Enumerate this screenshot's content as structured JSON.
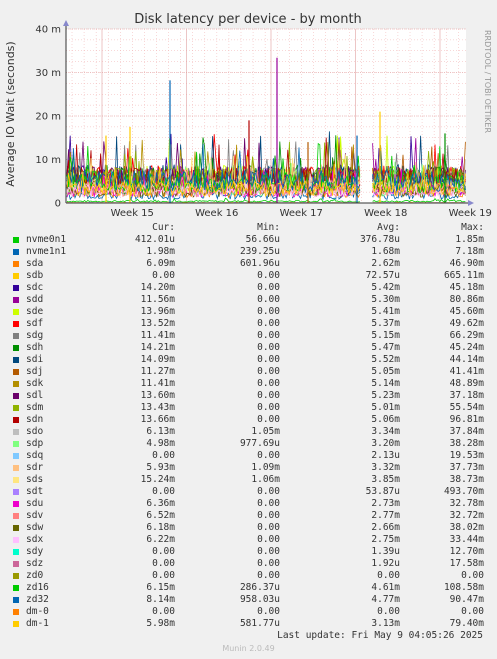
{
  "chart_data": {
    "type": "line",
    "title": "Disk latency per device - by month",
    "ylabel": "Average IO Wait (seconds)",
    "xlabel": "",
    "ylim": [
      0,
      0.04
    ],
    "y_ticks": [
      {
        "value": 0,
        "label": "0"
      },
      {
        "value": 0.01,
        "label": "10 m"
      },
      {
        "value": 0.02,
        "label": "20 m"
      },
      {
        "value": 0.03,
        "label": "30 m"
      },
      {
        "value": 0.04,
        "label": "40 m"
      }
    ],
    "x_ticks": [
      "Week 15",
      "Week 16",
      "Week 17",
      "Week 18",
      "Week 19"
    ],
    "grid": true,
    "legend_placement": "bottom",
    "side_label": "RRDTOOL / TOBI OETIKER"
  },
  "legend": {
    "headers": {
      "cur": "Cur:",
      "min": "Min:",
      "avg": "Avg:",
      "max": "Max:"
    },
    "rows": [
      {
        "name": "nvme0n1",
        "color": "#00cc00",
        "cur": "412.01u",
        "min": "56.66u",
        "avg": "376.78u",
        "max": "1.85m"
      },
      {
        "name": "nvme1n1",
        "color": "#0066b3",
        "cur": "1.98m",
        "min": "239.25u",
        "avg": "1.68m",
        "max": "7.18m"
      },
      {
        "name": "sda",
        "color": "#ff8000",
        "cur": "6.09m",
        "min": "601.96u",
        "avg": "2.62m",
        "max": "46.90m"
      },
      {
        "name": "sdb",
        "color": "#ffcc00",
        "cur": "0.00",
        "min": "0.00",
        "avg": "72.57u",
        "max": "665.11m"
      },
      {
        "name": "sdc",
        "color": "#330099",
        "cur": "14.20m",
        "min": "0.00",
        "avg": "5.42m",
        "max": "45.18m"
      },
      {
        "name": "sdd",
        "color": "#990099",
        "cur": "11.56m",
        "min": "0.00",
        "avg": "5.30m",
        "max": "80.86m"
      },
      {
        "name": "sde",
        "color": "#ccff00",
        "cur": "13.96m",
        "min": "0.00",
        "avg": "5.41m",
        "max": "45.60m"
      },
      {
        "name": "sdf",
        "color": "#ff0000",
        "cur": "13.52m",
        "min": "0.00",
        "avg": "5.37m",
        "max": "49.62m"
      },
      {
        "name": "sdg",
        "color": "#808080",
        "cur": "11.41m",
        "min": "0.00",
        "avg": "5.15m",
        "max": "66.29m"
      },
      {
        "name": "sdh",
        "color": "#008f00",
        "cur": "14.21m",
        "min": "0.00",
        "avg": "5.47m",
        "max": "45.24m"
      },
      {
        "name": "sdi",
        "color": "#00487d",
        "cur": "14.09m",
        "min": "0.00",
        "avg": "5.52m",
        "max": "44.14m"
      },
      {
        "name": "sdj",
        "color": "#b35a00",
        "cur": "11.27m",
        "min": "0.00",
        "avg": "5.05m",
        "max": "41.41m"
      },
      {
        "name": "sdk",
        "color": "#b38f00",
        "cur": "11.41m",
        "min": "0.00",
        "avg": "5.14m",
        "max": "48.89m"
      },
      {
        "name": "sdl",
        "color": "#6b006b",
        "cur": "13.60m",
        "min": "0.00",
        "avg": "5.23m",
        "max": "37.18m"
      },
      {
        "name": "sdm",
        "color": "#8fb300",
        "cur": "13.43m",
        "min": "0.00",
        "avg": "5.01m",
        "max": "55.54m"
      },
      {
        "name": "sdn",
        "color": "#b30000",
        "cur": "13.66m",
        "min": "0.00",
        "avg": "5.06m",
        "max": "96.81m"
      },
      {
        "name": "sdo",
        "color": "#bebebe",
        "cur": "6.13m",
        "min": "1.05m",
        "avg": "3.34m",
        "max": "37.84m"
      },
      {
        "name": "sdp",
        "color": "#80ff80",
        "cur": "4.98m",
        "min": "977.69u",
        "avg": "3.20m",
        "max": "38.28m"
      },
      {
        "name": "sdq",
        "color": "#80c9ff",
        "cur": "0.00",
        "min": "0.00",
        "avg": "2.13u",
        "max": "19.53m"
      },
      {
        "name": "sdr",
        "color": "#ffc080",
        "cur": "5.93m",
        "min": "1.09m",
        "avg": "3.32m",
        "max": "37.73m"
      },
      {
        "name": "sds",
        "color": "#ffe680",
        "cur": "15.24m",
        "min": "1.06m",
        "avg": "3.85m",
        "max": "38.73m"
      },
      {
        "name": "sdt",
        "color": "#aa80ff",
        "cur": "0.00",
        "min": "0.00",
        "avg": "53.87u",
        "max": "493.70m"
      },
      {
        "name": "sdu",
        "color": "#ee00cc",
        "cur": "6.36m",
        "min": "0.00",
        "avg": "2.73m",
        "max": "32.78m"
      },
      {
        "name": "sdv",
        "color": "#ff8080",
        "cur": "6.52m",
        "min": "0.00",
        "avg": "2.77m",
        "max": "32.72m"
      },
      {
        "name": "sdw",
        "color": "#666600",
        "cur": "6.18m",
        "min": "0.00",
        "avg": "2.66m",
        "max": "38.02m"
      },
      {
        "name": "sdx",
        "color": "#ffbfff",
        "cur": "6.22m",
        "min": "0.00",
        "avg": "2.75m",
        "max": "33.44m"
      },
      {
        "name": "sdy",
        "color": "#00ffcc",
        "cur": "0.00",
        "min": "0.00",
        "avg": "1.39u",
        "max": "12.70m"
      },
      {
        "name": "sdz",
        "color": "#cc6699",
        "cur": "0.00",
        "min": "0.00",
        "avg": "1.92u",
        "max": "17.58m"
      },
      {
        "name": "zd0",
        "color": "#999900",
        "cur": "0.00",
        "min": "0.00",
        "avg": "0.00",
        "max": "0.00"
      },
      {
        "name": "zd16",
        "color": "#00cc00",
        "cur": "6.15m",
        "min": "286.37u",
        "avg": "4.61m",
        "max": "108.58m"
      },
      {
        "name": "zd32",
        "color": "#0066b3",
        "cur": "8.14m",
        "min": "958.03u",
        "avg": "4.77m",
        "max": "90.47m"
      },
      {
        "name": "dm-0",
        "color": "#ff8000",
        "cur": "0.00",
        "min": "0.00",
        "avg": "0.00",
        "max": "0.00"
      },
      {
        "name": "dm-1",
        "color": "#ffcc00",
        "cur": "5.98m",
        "min": "581.77u",
        "avg": "3.13m",
        "max": "79.40m"
      }
    ]
  },
  "footer": {
    "last_update": "Last update: Fri May  9 04:05:26 2025",
    "munin": "Munin 2.0.49"
  }
}
